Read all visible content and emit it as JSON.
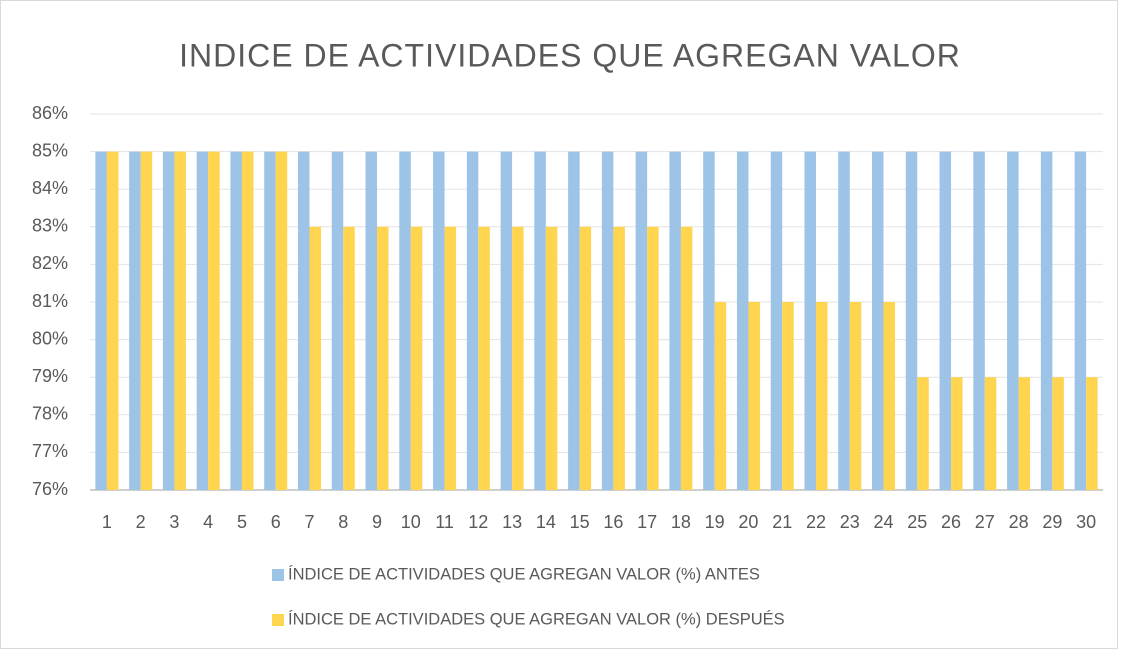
{
  "chart_data": {
    "type": "bar",
    "title": "INDICE DE ACTIVIDADES QUE AGREGAN VALOR",
    "categories": [
      "1",
      "2",
      "3",
      "4",
      "5",
      "6",
      "7",
      "8",
      "9",
      "10",
      "11",
      "12",
      "13",
      "14",
      "15",
      "16",
      "17",
      "18",
      "19",
      "20",
      "21",
      "22",
      "23",
      "24",
      "25",
      "26",
      "27",
      "28",
      "29",
      "30"
    ],
    "series": [
      {
        "name": "ÍNDICE DE ACTIVIDADES QUE AGREGAN VALOR (%) ANTES",
        "color": "#9dc3e6",
        "values": [
          85,
          85,
          85,
          85,
          85,
          85,
          85,
          85,
          85,
          85,
          85,
          85,
          85,
          85,
          85,
          85,
          85,
          85,
          85,
          85,
          85,
          85,
          85,
          85,
          85,
          85,
          85,
          85,
          85,
          85
        ]
      },
      {
        "name": "ÍNDICE DE ACTIVIDADES QUE AGREGAN VALOR (%) DESPUÉS",
        "color": "#ffd54f",
        "values": [
          85,
          85,
          85,
          85,
          85,
          85,
          83,
          83,
          83,
          83,
          83,
          83,
          83,
          83,
          83,
          83,
          83,
          83,
          81,
          81,
          81,
          81,
          81,
          81,
          79,
          79,
          79,
          79,
          79,
          79
        ]
      }
    ],
    "ylim": [
      76,
      86
    ],
    "yticks": [
      {
        "value": 76,
        "label": "76%"
      },
      {
        "value": 77,
        "label": "77%"
      },
      {
        "value": 78,
        "label": "78%"
      },
      {
        "value": 79,
        "label": "79%"
      },
      {
        "value": 80,
        "label": "80%"
      },
      {
        "value": 81,
        "label": "81%"
      },
      {
        "value": 82,
        "label": "82%"
      },
      {
        "value": 83,
        "label": "83%"
      },
      {
        "value": 84,
        "label": "84%"
      },
      {
        "value": 85,
        "label": "85%"
      },
      {
        "value": 86,
        "label": "86%"
      }
    ],
    "grid": true,
    "legend": "bottom"
  }
}
